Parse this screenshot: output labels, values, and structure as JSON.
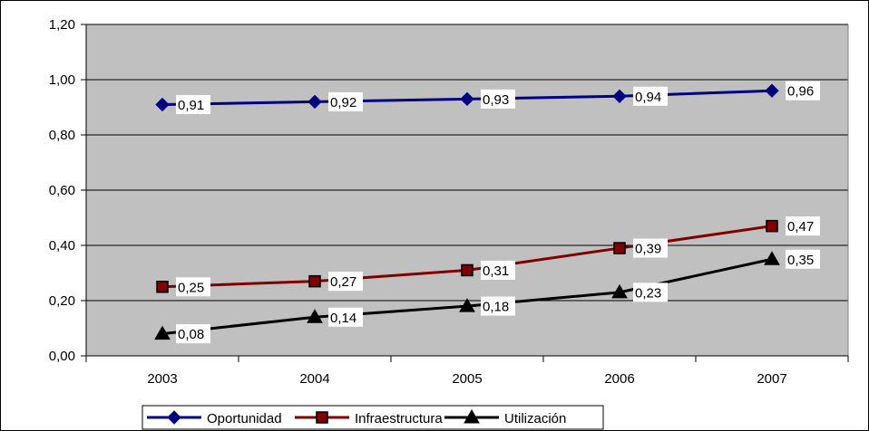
{
  "chart_data": {
    "type": "line",
    "title": "",
    "xlabel": "",
    "ylabel": "",
    "categories": [
      "2003",
      "2004",
      "2005",
      "2006",
      "2007"
    ],
    "ylim": [
      0,
      1.2
    ],
    "y_ticks": [
      "0,00",
      "0,20",
      "0,40",
      "0,60",
      "0,80",
      "1,00",
      "1,20"
    ],
    "grid": true,
    "legend_position": "bottom",
    "series": [
      {
        "name": "Oportunidad",
        "values": [
          0.91,
          0.92,
          0.93,
          0.94,
          0.96
        ],
        "labels": [
          "0,91",
          "0,92",
          "0,93",
          "0,94",
          "0,96"
        ],
        "color": "#000080",
        "marker": "diamond"
      },
      {
        "name": "Infraestructura",
        "values": [
          0.25,
          0.27,
          0.31,
          0.39,
          0.47
        ],
        "labels": [
          "0,25",
          "0,27",
          "0,31",
          "0,39",
          "0,47"
        ],
        "color": "#800000",
        "marker": "square"
      },
      {
        "name": "Utilización",
        "values": [
          0.08,
          0.14,
          0.18,
          0.23,
          0.35
        ],
        "labels": [
          "0,08",
          "0,14",
          "0,18",
          "0,23",
          "0,35"
        ],
        "color": "#000000",
        "marker": "triangle"
      }
    ],
    "colors": {
      "plot_background": "#c0c0c0",
      "gridline": "#000000"
    }
  }
}
